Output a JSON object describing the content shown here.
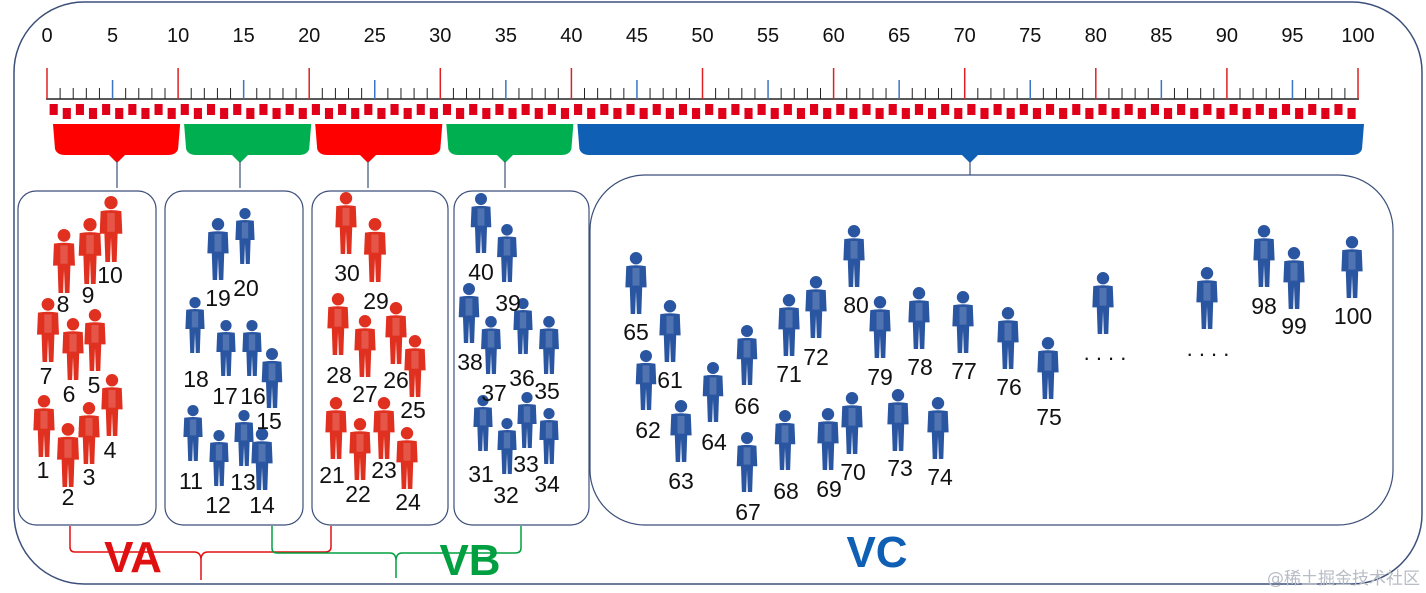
{
  "scale": {
    "labels": [
      "0",
      "5",
      "10",
      "15",
      "20",
      "25",
      "30",
      "35",
      "40",
      "45",
      "50",
      "55",
      "60",
      "65",
      "70",
      "75",
      "80",
      "85",
      "90",
      "95",
      "100"
    ],
    "max": 100,
    "colors": {
      "major": "#e02020",
      "mid": "#3a74c4",
      "minor": "#222222",
      "block": "#e0001a"
    }
  },
  "segments": [
    {
      "id": "seg-1",
      "from": 0,
      "to": 10,
      "color": "#ff0000"
    },
    {
      "id": "seg-2",
      "from": 10,
      "to": 20,
      "color": "#00b050"
    },
    {
      "id": "seg-3",
      "from": 20,
      "to": 30,
      "color": "#ff0000"
    },
    {
      "id": "seg-4",
      "from": 30,
      "to": 40,
      "color": "#00b050"
    },
    {
      "id": "seg-5",
      "from": 40,
      "to": 100,
      "color": "#0f5fb5"
    }
  ],
  "groups": {
    "va": {
      "label": "VA",
      "color": "#e01010"
    },
    "vb": {
      "label": "VB",
      "color": "#00a040"
    },
    "vc": {
      "label": "VC",
      "color": "#0f5fb5"
    }
  },
  "people": {
    "red_color": "#e03020",
    "blue_color": "#2a55a0",
    "box1": [
      "1",
      "2",
      "3",
      "4",
      "5",
      "6",
      "7",
      "8",
      "9",
      "10"
    ],
    "box2": [
      "11",
      "12",
      "13",
      "14",
      "15",
      "16",
      "17",
      "18",
      "19",
      "20"
    ],
    "box3": [
      "21",
      "22",
      "23",
      "24",
      "25",
      "26",
      "27",
      "28",
      "29",
      "30"
    ],
    "box4": [
      "31",
      "32",
      "33",
      "34",
      "35",
      "36",
      "37",
      "38",
      "39",
      "40"
    ],
    "box5": [
      "61",
      "62",
      "63",
      "64",
      "65",
      "66",
      "67",
      "68",
      "69",
      "70",
      "71",
      "72",
      "73",
      "74",
      "75",
      "76",
      "77",
      "78",
      "79",
      "80",
      "98",
      "99",
      "100"
    ]
  },
  "ellipsis": [
    ". . . .",
    ". . . ."
  ],
  "watermark": "@稀土掘金技术社区"
}
